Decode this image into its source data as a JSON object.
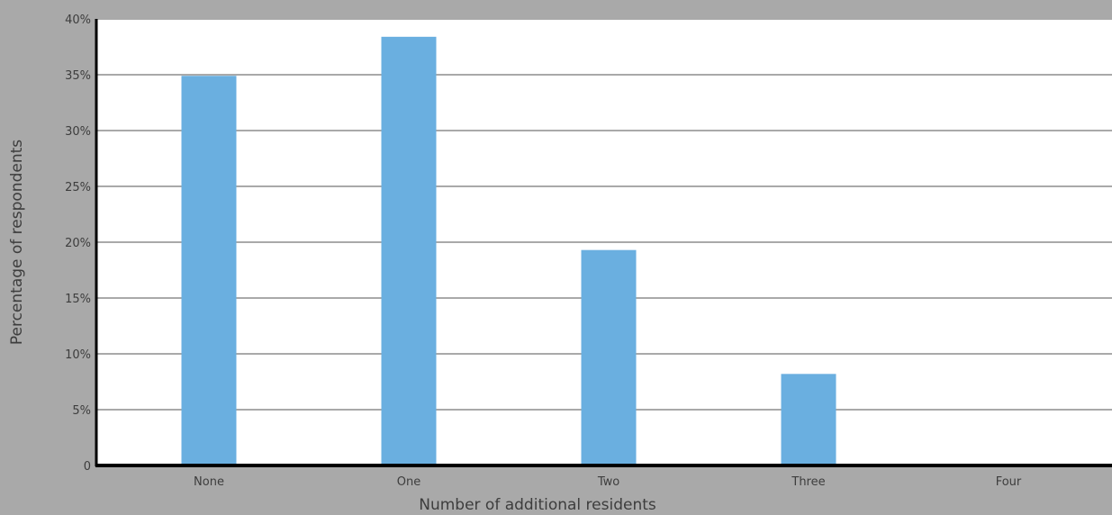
{
  "chart_data": {
    "type": "bar",
    "categories": [
      "None",
      "One",
      "Two",
      "Three",
      "Four"
    ],
    "values": [
      34.9,
      38.4,
      19.3,
      8.2,
      0
    ],
    "title": "",
    "xlabel": "Number of additional residents",
    "ylabel": "Percentage of respondents",
    "ylim": [
      0,
      40
    ],
    "yticks": [
      0,
      5,
      10,
      15,
      20,
      25,
      30,
      35,
      40
    ],
    "ytick_labels": [
      "0",
      "5%",
      "10%",
      "15%",
      "20%",
      "25%",
      "30%",
      "35%",
      "40%"
    ],
    "grid": true,
    "colors": {
      "bar": "#6aafe0",
      "plot_background": "#ffffff",
      "page_background": "#a9a9a9",
      "gridline": "#a9a9a9",
      "axis": "#000000"
    }
  }
}
